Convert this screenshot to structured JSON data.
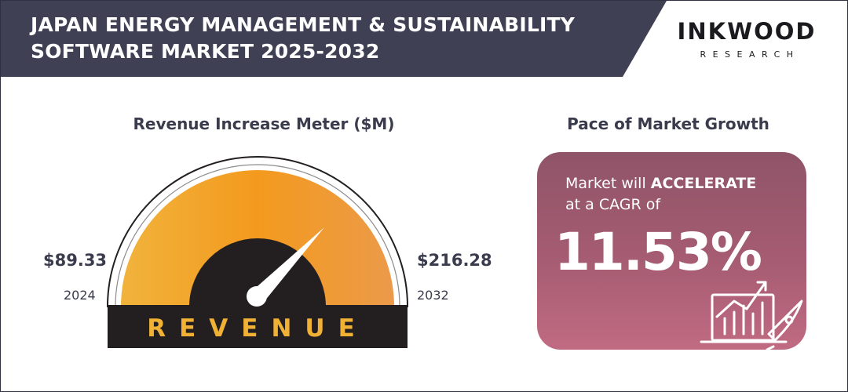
{
  "header": {
    "title_line1": "JAPAN ENERGY MANAGEMENT & SUSTAINABILITY",
    "title_line2": "SOFTWARE MARKET 2025-2032",
    "brand_name": "INKWOOD",
    "brand_sub": "RESEARCH"
  },
  "meter": {
    "title": "Revenue Increase Meter ($M)",
    "label": "REVENUE",
    "start_value": "$89.33",
    "start_year": "2024",
    "end_value": "$216.28",
    "end_year": "2032"
  },
  "growth": {
    "title": "Pace of Market Growth",
    "line1_prefix": "Market will ",
    "line1_emphasis": "ACCELERATE",
    "line2": "at a CAGR of",
    "cagr": "11.53%",
    "icon": "growth-chart-rocket-icon"
  },
  "colors": {
    "header": "#3f4054",
    "accent_orange": "#f39a1e",
    "gauge_dark": "#231f20",
    "label_gold": "#f0b135",
    "card_top": "#8f5468",
    "card_bottom": "#c06b82"
  },
  "chart_data": {
    "type": "gauge",
    "title": "Revenue Increase Meter ($M)",
    "unit": "$M",
    "points": [
      {
        "year": "2024",
        "value": 89.33
      },
      {
        "year": "2032",
        "value": 216.28
      }
    ],
    "cagr_percent": 11.53,
    "growth_label": "ACCELERATE"
  }
}
